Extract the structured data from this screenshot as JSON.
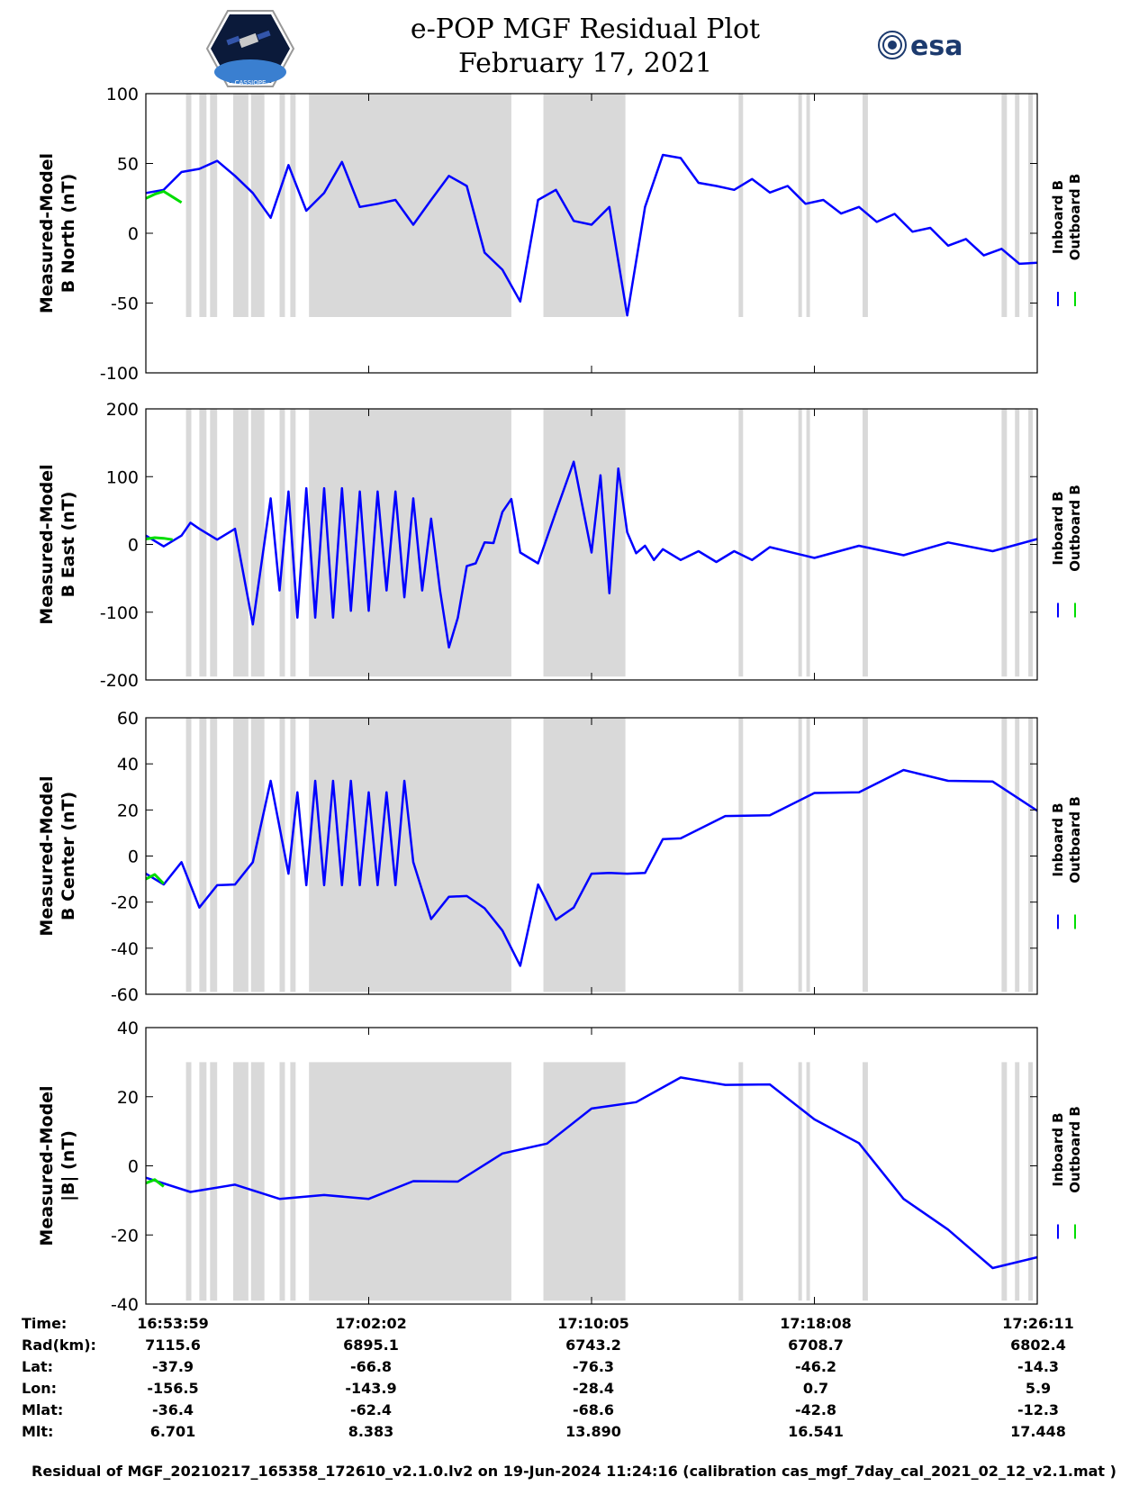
{
  "title": "e-POP MGF Residual Plot",
  "subtitle": "February 17, 2021",
  "logos": {
    "left": "CASSIOPE",
    "right": "esa"
  },
  "colors": {
    "inboard": "#0000ff",
    "outboard": "#00dd00",
    "shade": "#d9d9d9"
  },
  "legend": {
    "inboard": "Inboard B",
    "outboard": "Outboard B"
  },
  "chart_data": [
    {
      "type": "line",
      "title": "",
      "ylabel": [
        "Measured-Model",
        "B North (nT)"
      ],
      "ylim": [
        -100,
        100
      ],
      "yticks": [
        "100",
        "50",
        "0",
        "-50",
        "-100"
      ],
      "ytick_values": [
        100,
        50,
        0,
        -50,
        -100
      ],
      "shade_range": [
        -60,
        100
      ],
      "series": [
        {
          "name": "Inboard B",
          "x": [
            0,
            2,
            4,
            6,
            8,
            10,
            12,
            14,
            16,
            18,
            20,
            22,
            24,
            26,
            28,
            30,
            32,
            34,
            36,
            38,
            40,
            42,
            44,
            46,
            48,
            50,
            52,
            54,
            56,
            58,
            60,
            62,
            64,
            66,
            68,
            70,
            72,
            74,
            76,
            78,
            80,
            82,
            84,
            86,
            88,
            90,
            92,
            94,
            96,
            98,
            100
          ],
          "values": [
            25,
            35,
            40,
            50,
            48,
            45,
            25,
            15,
            45,
            20,
            25,
            55,
            15,
            25,
            20,
            10,
            20,
            45,
            30,
            -10,
            -30,
            -45,
            20,
            35,
            5,
            10,
            15,
            -55,
            15,
            60,
            50,
            40,
            30,
            35,
            35,
            33,
            30,
            25,
            20,
            18,
            15,
            12,
            10,
            5,
            0,
            -5,
            -8,
            -12,
            -15,
            -18,
            -25
          ]
        },
        {
          "name": "Outboard B",
          "x": [
            0,
            1,
            2,
            3,
            4
          ],
          "values": [
            25,
            28,
            30,
            26,
            22
          ]
        }
      ]
    },
    {
      "type": "line",
      "title": "",
      "ylabel": [
        "Measured-Model",
        "B East (nT)"
      ],
      "ylim": [
        -200,
        200
      ],
      "yticks": [
        "200",
        "100",
        "0",
        "-100",
        "-200"
      ],
      "ytick_values": [
        200,
        100,
        0,
        -100,
        -200
      ],
      "shade_range": [
        -195,
        200
      ],
      "series": [
        {
          "name": "Inboard B",
          "x": [
            0,
            2,
            4,
            5,
            6,
            8,
            10,
            12,
            14,
            15,
            16,
            17,
            18,
            19,
            20,
            21,
            22,
            23,
            24,
            25,
            26,
            27,
            28,
            29,
            30,
            31,
            32,
            33,
            34,
            35,
            36,
            37,
            38,
            39,
            40,
            41,
            42,
            44,
            46,
            48,
            50,
            51,
            52,
            53,
            54,
            55,
            56,
            57,
            58,
            60,
            62,
            64,
            66,
            68,
            70,
            75,
            80,
            85,
            90,
            95,
            100
          ],
          "values": [
            5,
            5,
            5,
            40,
            15,
            15,
            15,
            -110,
            60,
            -60,
            70,
            -100,
            75,
            -100,
            75,
            -100,
            75,
            -90,
            70,
            -90,
            70,
            -60,
            70,
            -70,
            60,
            -60,
            30,
            -60,
            -160,
            -100,
            -40,
            -20,
            -5,
            10,
            40,
            75,
            -20,
            -20,
            40,
            130,
            -20,
            110,
            -80,
            120,
            10,
            -5,
            -10,
            -15,
            -15,
            -15,
            -18,
            -18,
            -18,
            -15,
            -12,
            -12,
            -10,
            -8,
            -5,
            -2,
            0
          ]
        },
        {
          "name": "Outboard B",
          "x": [
            0,
            1,
            2,
            3
          ],
          "values": [
            8,
            10,
            9,
            7
          ]
        }
      ]
    },
    {
      "type": "line",
      "title": "",
      "ylabel": [
        "Measured-Model",
        "B Center (nT)"
      ],
      "ylim": [
        -60,
        60
      ],
      "yticks": [
        "60",
        "40",
        "20",
        "0",
        "-20",
        "-40",
        "-60"
      ],
      "ytick_values": [
        60,
        40,
        20,
        0,
        -20,
        -40,
        -60
      ],
      "shade_range": [
        -59,
        60
      ],
      "series": [
        {
          "name": "Inboard B",
          "x": [
            0,
            2,
            4,
            6,
            8,
            10,
            12,
            14,
            16,
            17,
            18,
            19,
            20,
            21,
            22,
            23,
            24,
            25,
            26,
            27,
            28,
            29,
            30,
            32,
            34,
            36,
            38,
            40,
            42,
            44,
            46,
            48,
            50,
            52,
            54,
            56,
            58,
            60,
            65,
            70,
            75,
            80,
            85,
            90,
            95,
            100
          ],
          "values": [
            -10,
            -10,
            -5,
            -20,
            -15,
            -10,
            -5,
            35,
            -10,
            30,
            -15,
            35,
            -15,
            35,
            -15,
            35,
            -15,
            30,
            -15,
            30,
            -15,
            35,
            -5,
            -25,
            -20,
            -15,
            -25,
            -30,
            -50,
            -10,
            -30,
            -20,
            -10,
            -5,
            -10,
            -5,
            5,
            10,
            15,
            20,
            25,
            30,
            35,
            35,
            30,
            22
          ]
        },
        {
          "name": "Outboard B",
          "x": [
            0,
            1,
            2
          ],
          "values": [
            -10,
            -8,
            -12
          ]
        }
      ]
    },
    {
      "type": "line",
      "title": "",
      "ylabel": [
        "Measured-Model",
        "|B| (nT)"
      ],
      "ylim": [
        -40,
        40
      ],
      "yticks": [
        "40",
        "20",
        "0",
        "-20",
        "-40"
      ],
      "ytick_values": [
        40,
        20,
        0,
        -20,
        -40
      ],
      "shade_range": [
        -39,
        30
      ],
      "series": [
        {
          "name": "Inboard B",
          "x": [
            0,
            5,
            10,
            15,
            20,
            25,
            30,
            35,
            40,
            45,
            50,
            55,
            60,
            65,
            70,
            75,
            80,
            85,
            90,
            95,
            100
          ],
          "values": [
            -5,
            -6,
            -7,
            -8,
            -10,
            -8,
            -6,
            -3,
            2,
            8,
            15,
            20,
            24,
            25,
            22,
            15,
            5,
            -8,
            -20,
            -28,
            -28
          ]
        },
        {
          "name": "Outboard B",
          "x": [
            0,
            1,
            2
          ],
          "values": [
            -5,
            -4,
            -6
          ]
        }
      ]
    }
  ],
  "shaded_intervals": [
    [
      4.5,
      5.1
    ],
    [
      6.0,
      6.8
    ],
    [
      7.2,
      8.0
    ],
    [
      9.8,
      11.5
    ],
    [
      11.8,
      13.3
    ],
    [
      15.0,
      15.6
    ],
    [
      16.2,
      16.8
    ],
    [
      18.3,
      41.0
    ],
    [
      44.6,
      53.8
    ],
    [
      66.5,
      67.0
    ],
    [
      73.2,
      73.6
    ],
    [
      74.1,
      74.5
    ],
    [
      80.4,
      81.0
    ],
    [
      96.0,
      96.6
    ],
    [
      97.5,
      98.0
    ],
    [
      99.0,
      99.5
    ]
  ],
  "x_range": [
    0,
    100
  ],
  "xticks": [
    0,
    25,
    50,
    75,
    100
  ],
  "info_table": {
    "labels": [
      "Time:",
      "Rad(km):",
      "Lat:",
      "Lon:",
      "Mlat:",
      "Mlt:"
    ],
    "columns": [
      [
        "16:53:59",
        "7115.6",
        "-37.9",
        "-156.5",
        "-36.4",
        "6.701"
      ],
      [
        "17:02:02",
        "6895.1",
        "-66.8",
        "-143.9",
        "-62.4",
        "8.383"
      ],
      [
        "17:10:05",
        "6743.2",
        "-76.3",
        "-28.4",
        "-68.6",
        "13.890"
      ],
      [
        "17:18:08",
        "6708.7",
        "-46.2",
        "0.7",
        "-42.8",
        "16.541"
      ],
      [
        "17:26:11",
        "6802.4",
        "-14.3",
        "5.9",
        "-12.3",
        "17.448"
      ]
    ]
  },
  "footer": "Residual of MGF_20210217_165358_172610_v2.1.0.lv2 on 19-Jun-2024 11:24:16 (calibration cas_mgf_7day_cal_2021_02_12_v2.1.mat )"
}
